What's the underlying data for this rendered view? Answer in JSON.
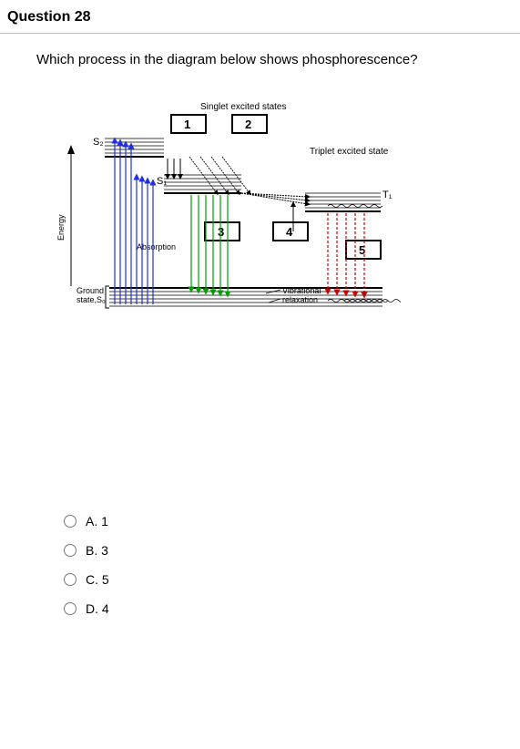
{
  "question": {
    "number": "Question 28",
    "text": "Which process in the diagram below shows phosphorescence?"
  },
  "diagram": {
    "title_top": "Singlet excited states",
    "right_label": "Triplet excited state",
    "s2_label": "S₂",
    "s1_label": "S₁",
    "t1_label": "T₁",
    "ground_label_l1": "Ground",
    "ground_label_l2": "state,S₀",
    "energy_axis": "Energy",
    "absorption_label": "Absorption",
    "vib_label_l1": "Vibrational",
    "vib_label_l2": "relaxation",
    "box1": "1",
    "box2": "2",
    "box3": "3",
    "box4": "4",
    "box5": "5",
    "colors": {
      "absorption": "#2030e0",
      "fluorescence": "#00a000",
      "vibrational": "#000000",
      "isc": "#a000a0",
      "phosphorescence": "#d00000",
      "triplet_line": "#000000",
      "state_line": "#000000",
      "box_stroke": "#000000"
    }
  },
  "options": {
    "a": "A. 1",
    "b": "B. 3",
    "c": "C. 5",
    "d": "D. 4"
  }
}
